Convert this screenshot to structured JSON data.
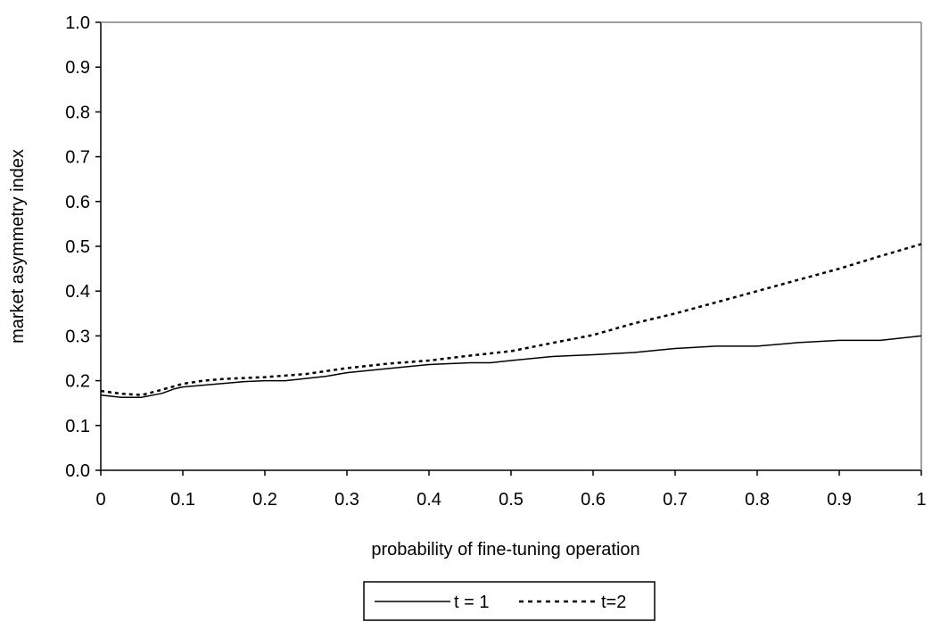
{
  "chart_data": {
    "type": "line",
    "title": "",
    "xlabel": "probability of fine-tuning operation",
    "ylabel": "market asymmetry index",
    "xlim": [
      0,
      1
    ],
    "ylim": [
      0,
      1
    ],
    "x_ticks": [
      "0",
      "0.1",
      "0.2",
      "0.3",
      "0.4",
      "0.5",
      "0.6",
      "0.7",
      "0.8",
      "0.9",
      "1"
    ],
    "y_ticks": [
      "0.0",
      "0.1",
      "0.2",
      "0.3",
      "0.4",
      "0.5",
      "0.6",
      "0.7",
      "0.8",
      "0.9",
      "1.0"
    ],
    "grid": false,
    "legend_position": "bottom",
    "series": [
      {
        "name": "t = 1",
        "style": "solid",
        "x": [
          0,
          0.025,
          0.05,
          0.075,
          0.09,
          0.1,
          0.125,
          0.15,
          0.175,
          0.2,
          0.225,
          0.25,
          0.275,
          0.3,
          0.35,
          0.4,
          0.45,
          0.475,
          0.5,
          0.55,
          0.6,
          0.65,
          0.7,
          0.75,
          0.8,
          0.85,
          0.9,
          0.95,
          1.0
        ],
        "y": [
          0.168,
          0.163,
          0.163,
          0.172,
          0.182,
          0.186,
          0.19,
          0.194,
          0.198,
          0.2,
          0.2,
          0.205,
          0.21,
          0.218,
          0.227,
          0.236,
          0.24,
          0.24,
          0.245,
          0.254,
          0.258,
          0.263,
          0.272,
          0.277,
          0.277,
          0.285,
          0.29,
          0.29,
          0.3
        ]
      },
      {
        "name": "t=2",
        "style": "dotted",
        "x": [
          0,
          0.025,
          0.05,
          0.075,
          0.1,
          0.125,
          0.15,
          0.175,
          0.2,
          0.25,
          0.3,
          0.35,
          0.4,
          0.45,
          0.5,
          0.55,
          0.6,
          0.65,
          0.7,
          0.75,
          0.8,
          0.85,
          0.9,
          0.95,
          1.0
        ],
        "y": [
          0.177,
          0.171,
          0.168,
          0.18,
          0.193,
          0.2,
          0.204,
          0.206,
          0.208,
          0.215,
          0.228,
          0.238,
          0.245,
          0.256,
          0.266,
          0.284,
          0.302,
          0.328,
          0.35,
          0.375,
          0.4,
          0.425,
          0.45,
          0.478,
          0.505
        ]
      }
    ]
  }
}
